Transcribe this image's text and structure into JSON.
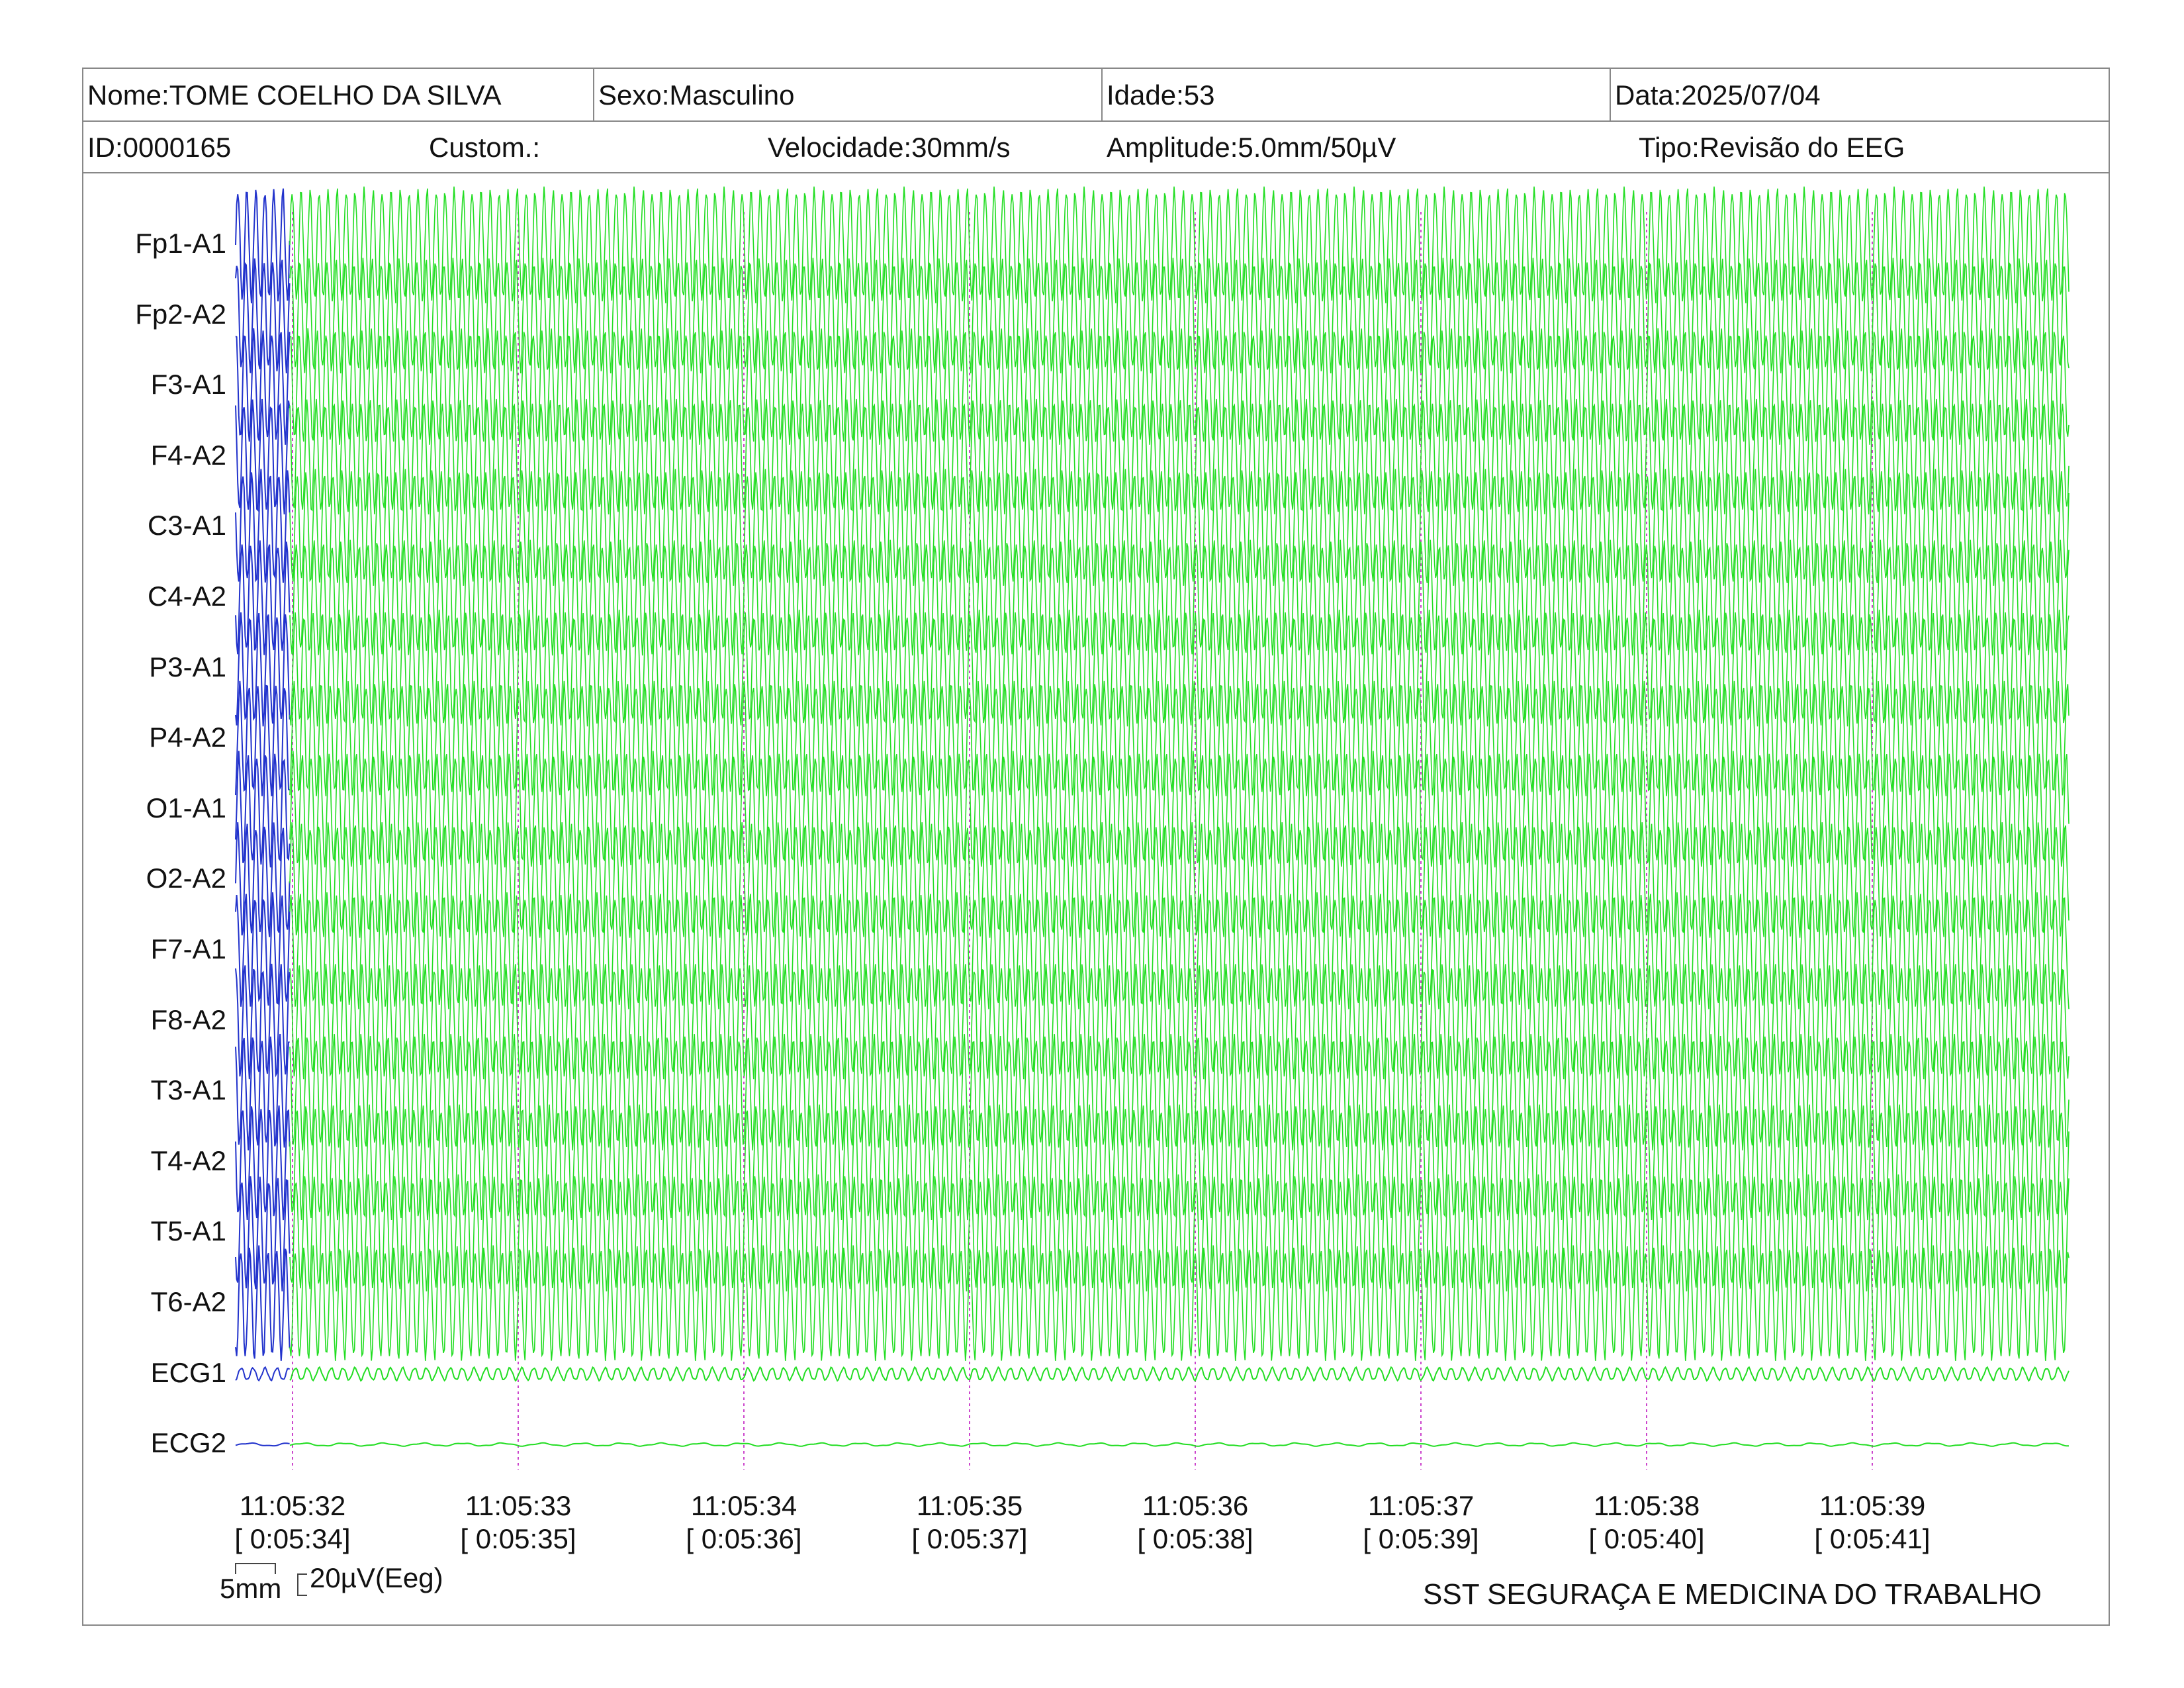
{
  "header": {
    "nome": "Nome:TOME COELHO DA SILVA",
    "sexo": "Sexo:Masculino",
    "idade": "Idade:53",
    "data": "Data:2025/07/04",
    "id": "ID:0000165",
    "custom": "Custom.:",
    "velocidade": "Velocidade:30mm/s",
    "amplitude": "Amplitude:5.0mm/50µV",
    "tipo": "Tipo:Revisão do EEG"
  },
  "channels": [
    "Fp1-A1",
    "Fp2-A2",
    "F3-A1",
    "F4-A2",
    "C3-A1",
    "C4-A2",
    "P3-A1",
    "P4-A2",
    "O1-A1",
    "O2-A2",
    "F7-A1",
    "F8-A2",
    "T3-A1",
    "T4-A2",
    "T5-A1",
    "T6-A2",
    "ECG1",
    "ECG2"
  ],
  "time_markers": [
    {
      "clock": "11:05:32",
      "elapsed": "[ 0:05:34]"
    },
    {
      "clock": "11:05:33",
      "elapsed": "[ 0:05:35]"
    },
    {
      "clock": "11:05:34",
      "elapsed": "[ 0:05:36]"
    },
    {
      "clock": "11:05:35",
      "elapsed": "[ 0:05:37]"
    },
    {
      "clock": "11:05:36",
      "elapsed": "[ 0:05:38]"
    },
    {
      "clock": "11:05:37",
      "elapsed": "[ 0:05:39]"
    },
    {
      "clock": "11:05:38",
      "elapsed": "[ 0:05:40]"
    },
    {
      "clock": "11:05:39",
      "elapsed": "[ 0:05:41]"
    }
  ],
  "calibration": {
    "time_scale": "5mm",
    "amplitude_scale": "20µV(Eeg)"
  },
  "footer": "SST SEGURAÇA E MEDICINA DO TRABALHO",
  "colors": {
    "trace": "#22dd22",
    "trace_pre": "#2233cc",
    "marker": "#cc44cc",
    "border": "#888888"
  }
}
